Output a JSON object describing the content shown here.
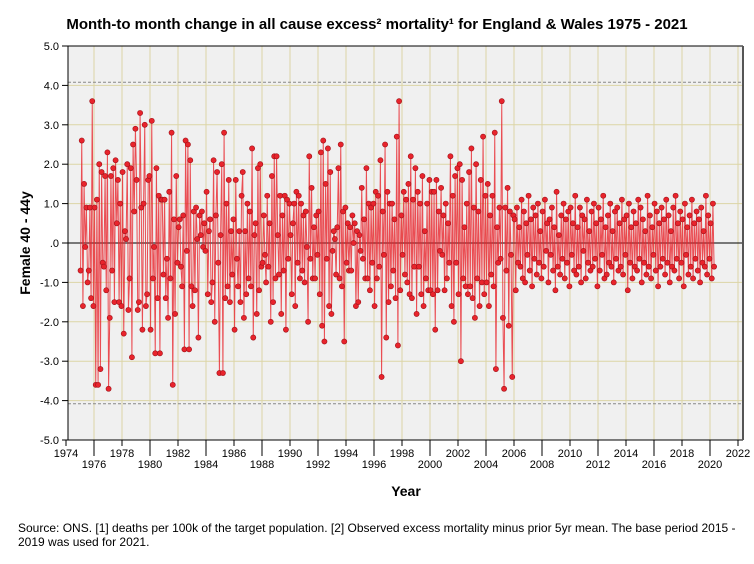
{
  "chart_data": {
    "type": "line",
    "title": "Month-to month change in all cause excess² mortality¹  for England & Wales 1975 - 2021",
    "xlabel": "Year",
    "ylabel": "Female 40 - 44y",
    "xlim": [
      1974,
      2022
    ],
    "ylim": [
      -5.0,
      5.0
    ],
    "xticks": [
      "1974",
      "1976",
      "1978",
      "1980",
      "1982",
      "1984",
      "1986",
      "1988",
      "1990",
      "1992",
      "1994",
      "1996",
      "1998",
      "2000",
      "2002",
      "2004",
      "2006",
      "2008",
      "2010",
      "2012",
      "2014",
      "2016",
      "2018",
      "2020",
      "2022"
    ],
    "yticks": [
      "5.0",
      "4.0",
      "3.0",
      "2.0",
      "1.0",
      ".0",
      "-1.0",
      "-2.0",
      "-3.0",
      "-4.0",
      "-5.0"
    ],
    "reference_lines": [
      4.08,
      -4.08
    ],
    "grid": true,
    "start_year": 1975,
    "series": [
      {
        "name": "Female 40 - 44y",
        "color": "#e8242c",
        "values": [
          -0.7,
          2.6,
          -1.6,
          1.5,
          -0.1,
          0.9,
          -1.0,
          -0.7,
          0.9,
          -1.4,
          3.6,
          -1.6,
          0.9,
          -3.6,
          1.1,
          -3.6,
          2.0,
          -3.2,
          1.8,
          -0.5,
          -0.6,
          1.7,
          -1.2,
          2.3,
          -3.7,
          -1.9,
          1.7,
          -0.7,
          1.9,
          -1.5,
          2.1,
          0.5,
          1.6,
          -1.5,
          1.0,
          -1.6,
          1.8,
          -2.3,
          0.3,
          0.1,
          2.0,
          -1.7,
          -0.9,
          1.9,
          -2.9,
          2.5,
          0.8,
          2.9,
          1.6,
          -1.7,
          -1.5,
          3.3,
          0.9,
          -2.2,
          1.0,
          3.0,
          -1.6,
          -1.3,
          1.6,
          1.7,
          -2.2,
          3.1,
          -0.9,
          -0.1,
          -2.8,
          1.9,
          -1.4,
          1.2,
          -2.8,
          1.1,
          1.1,
          -0.8,
          1.1,
          -1.4,
          -0.4,
          -1.9,
          1.3,
          -0.9,
          2.8,
          -3.6,
          0.6,
          -1.8,
          1.7,
          -0.5,
          0.4,
          0.6,
          -0.6,
          -1.1,
          0.7,
          -2.7,
          2.6,
          -0.2,
          2.5,
          -2.7,
          2.1,
          -1.1,
          -1.6,
          0.8,
          -1.2,
          0.9,
          0.1,
          -2.4,
          0.7,
          0.2,
          0.8,
          -0.1,
          0.5,
          -0.2,
          1.3,
          -1.3,
          0.3,
          0.6,
          -1.5,
          -1.0,
          2.1,
          -2.0,
          0.7,
          1.8,
          -0.5,
          -3.3,
          0.2,
          2.0,
          -3.3,
          2.8,
          -1.4,
          1.0,
          -1.1,
          1.6,
          -1.5,
          0.3,
          -0.8,
          0.6,
          -2.2,
          1.6,
          -0.4,
          -1.1,
          0.3,
          -1.5,
          1.2,
          1.8,
          -1.9,
          0.3,
          -1.3,
          1.0,
          -0.9,
          0.8,
          -1.1,
          2.4,
          -2.4,
          0.2,
          0.5,
          -1.8,
          1.9,
          -1.2,
          2.0,
          -0.6,
          -0.5,
          0.7,
          -0.3,
          -1.0,
          1.2,
          -0.6,
          0.5,
          -2.0,
          1.7,
          -1.5,
          2.2,
          -0.9,
          2.2,
          0.2,
          -0.8,
          1.2,
          -1.8,
          0.7,
          -0.7,
          1.2,
          -2.2,
          1.1,
          -0.4,
          1.0,
          0.2,
          -1.3,
          0.5,
          1.0,
          -1.6,
          1.3,
          -0.5,
          1.2,
          -0.9,
          1.0,
          -0.7,
          0.7,
          -1.0,
          0.8,
          -0.1,
          -2.0,
          2.2,
          -0.4,
          1.4,
          -0.9,
          0.4,
          -0.9,
          0.7,
          -0.3,
          0.8,
          -1.3,
          2.3,
          -2.1,
          2.6,
          -2.5,
          1.5,
          -0.4,
          2.4,
          -1.6,
          1.8,
          -1.8,
          -0.2,
          0.3,
          0.1,
          -0.8,
          0.4,
          1.9,
          -0.9,
          2.5,
          -1.1,
          0.8,
          -2.5,
          0.9,
          -0.5,
          0.5,
          -0.7,
          0.4,
          -0.7,
          0.7,
          0.0,
          0.5,
          -1.6,
          0.3,
          -1.5,
          0.2,
          -0.2,
          1.4,
          -0.4,
          0.6,
          -0.9,
          1.9,
          -0.9,
          1.0,
          -1.2,
          0.9,
          -0.5,
          1.0,
          -1.6,
          1.3,
          -0.9,
          1.2,
          -0.6,
          2.1,
          -3.4,
          0.8,
          -0.3,
          2.5,
          -2.4,
          1.3,
          -1.5,
          1.0,
          -1.1,
          1.0,
          -0.7,
          0.6,
          -1.4,
          2.7,
          -2.6,
          3.6,
          -1.2,
          0.7,
          -0.3,
          1.3,
          -0.8,
          1.1,
          -1.0,
          1.5,
          -1.3,
          2.2,
          -1.4,
          1.1,
          -0.6,
          1.9,
          -1.8,
          1.3,
          -0.6,
          1.0,
          -1.3,
          1.7,
          -1.6,
          0.3,
          -0.9,
          1.0,
          -1.2,
          1.6,
          -1.2,
          1.3,
          -1.3,
          1.3,
          -2.2,
          1.6,
          -1.2,
          0.8,
          -0.2,
          1.4,
          -0.3,
          0.7,
          -1.2,
          1.0,
          -0.9,
          0.5,
          -0.5,
          2.2,
          -1.6,
          1.2,
          -2.0,
          1.7,
          -0.5,
          1.9,
          -1.3,
          2.0,
          -3.0,
          1.6,
          -0.9,
          0.4,
          -1.1,
          1.0,
          -1.3,
          1.8,
          -1.1,
          2.4,
          -1.4,
          0.9,
          -1.9,
          2.0,
          -0.9,
          0.8,
          -1.6,
          1.6,
          -1.0,
          2.7,
          -1.3,
          1.2,
          -1.0,
          1.5,
          -1.6,
          0.7,
          -0.8,
          1.2,
          -1.1,
          2.8,
          -3.2,
          0.4,
          -0.5,
          0.9,
          -0.4,
          3.6,
          -1.9,
          -3.7,
          0.9,
          -0.7,
          1.4,
          -2.1,
          0.8,
          -0.3,
          -3.4,
          0.7,
          0.6,
          -1.2,
          0.9,
          -0.5,
          0.4,
          -0.6,
          1.1,
          -0.9,
          0.8,
          -1.0,
          0.5,
          -0.3,
          1.2,
          -0.7,
          0.6,
          -1.1,
          0.9,
          -0.4,
          0.7,
          -0.8,
          1.0,
          -0.5,
          0.3,
          -0.9,
          0.8,
          -0.6,
          1.1,
          -0.2,
          0.5,
          -1.0,
          0.6,
          -0.3,
          0.9,
          -0.7,
          0.4,
          -1.2,
          1.3,
          -0.6,
          0.2,
          -0.8,
          0.7,
          -0.4,
          1.0,
          -0.9,
          0.6,
          -0.5,
          0.8,
          -1.1,
          0.9,
          -0.3,
          0.5,
          -0.7,
          1.2,
          -0.8,
          0.4,
          -0.6,
          0.9,
          -1.0,
          0.7,
          -0.2,
          0.6,
          -0.9,
          1.1,
          -0.5,
          0.3,
          -0.7,
          0.8,
          -0.6,
          1.0,
          -0.4,
          0.5,
          -1.1,
          0.9,
          -0.7,
          0.6,
          -0.3,
          1.2,
          -0.9,
          0.4,
          -0.8,
          0.7,
          -0.5,
          1.0,
          -0.6,
          0.3,
          -1.0,
          0.8,
          -0.4,
          0.9,
          -0.7,
          0.5,
          -0.6,
          1.1,
          -0.8,
          0.6,
          -0.3,
          0.7,
          -1.2,
          1.0,
          -0.5,
          0.4,
          -0.9,
          0.8,
          -0.6,
          0.5,
          -0.7,
          1.1,
          -0.4,
          0.9,
          -1.0,
          0.6,
          -0.5,
          0.3,
          -0.8,
          1.2,
          -0.6,
          0.7,
          -0.9,
          0.4,
          -0.3,
          1.0,
          -0.7,
          0.8,
          -1.1,
          0.5,
          -0.6,
          0.9,
          -0.4,
          0.6,
          -0.8,
          1.1,
          -0.5,
          0.7,
          -1.0,
          0.3,
          -0.6,
          0.9,
          -0.7,
          1.2,
          -0.4,
          0.5,
          -0.9,
          0.8,
          -0.5,
          0.6,
          -1.1,
          1.0,
          -0.3,
          0.4,
          -0.8,
          0.7,
          -0.6,
          1.1,
          -0.9,
          0.5,
          -0.4,
          0.8,
          -0.7,
          0.6,
          -1.0,
          0.9,
          -0.5,
          0.3,
          -0.6,
          1.2,
          -0.8,
          0.7,
          -0.4,
          0.5,
          -0.9,
          1.0,
          -0.6
        ]
      }
    ]
  },
  "source_note": "Source: ONS. [1] deaths per 100k of the target population. [2] Observed excess mortality minus prior 5yr mean. The base period 2015 - 2019 was used for 2021."
}
